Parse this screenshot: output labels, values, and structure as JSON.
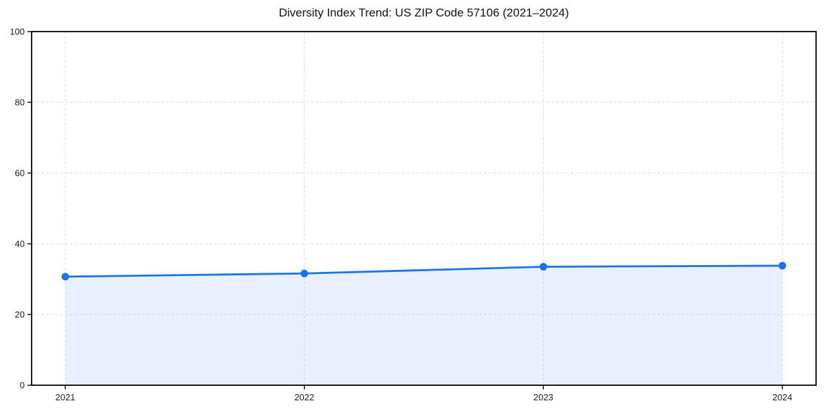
{
  "page": {
    "background": "#ffffff"
  },
  "chart_data": {
    "type": "line",
    "title": "Diversity Index Trend: US ZIP Code 57106 (2021–2024)",
    "x": [
      "2021",
      "2022",
      "2023",
      "2024"
    ],
    "values": [
      30.7,
      31.6,
      33.5,
      33.8
    ],
    "series_name": "Diversity Index",
    "xlabel": "",
    "ylabel": "",
    "ylim": [
      0,
      100
    ],
    "yticks": [
      0,
      20,
      40,
      60,
      80,
      100
    ],
    "grid": true,
    "grid_style": "dashed",
    "legend_position": "none",
    "marker": "circle",
    "area_fill": true,
    "colors": {
      "line": "#1a73e8",
      "fill_opacity": 0.1,
      "grid": "#dcdcdc",
      "axis": "#000000",
      "tick_text": "#1a1a1a",
      "title_text": "#111111"
    }
  }
}
